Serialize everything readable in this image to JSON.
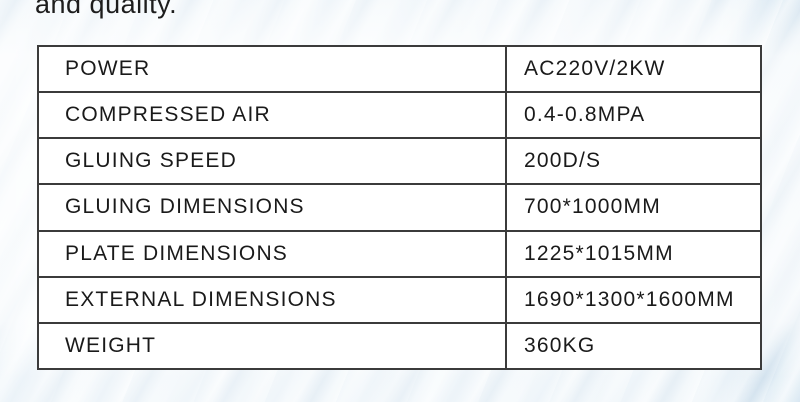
{
  "page": {
    "heading_partial": "and quality."
  },
  "spec_table": {
    "rows": [
      {
        "label": "POWER",
        "value": "AC220V/2KW"
      },
      {
        "label": "COMPRESSED AIR",
        "value": "0.4-0.8MPA"
      },
      {
        "label": "GLUING SPEED",
        "value": "200D/S"
      },
      {
        "label": "GLUING DIMENSIONS",
        "value": "700*1000MM"
      },
      {
        "label": "PLATE DIMENSIONS",
        "value": "1225*1015MM"
      },
      {
        "label": "EXTERNAL DIMENSIONS",
        "value": "1690*1300*1600MM"
      },
      {
        "label": "WEIGHT",
        "value": "360KG"
      }
    ]
  },
  "colors": {
    "table_border": "#3b3b3b",
    "text": "#1a1a1a",
    "background_tint": "#d6e7f2",
    "cell_background": "#ffffff"
  }
}
